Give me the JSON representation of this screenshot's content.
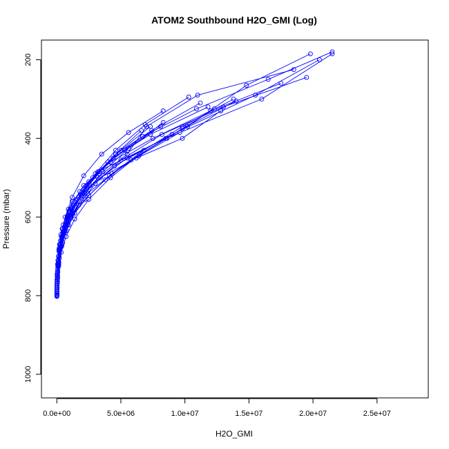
{
  "chart_data": {
    "type": "line",
    "title": "ATOM2 Southbound H2O_GMI (Log)",
    "xlabel": "H2O_GMI",
    "ylabel": "Pressure (mbar)",
    "xlim": [
      -1200000,
      29000000
    ],
    "ylim": [
      1060,
      150
    ],
    "y_reversed": true,
    "x_ticks": [
      0,
      5000000,
      10000000,
      15000000,
      20000000,
      25000000
    ],
    "x_tick_labels": [
      "0.0e+00",
      "5.0e+06",
      "1.0e+07",
      "1.5e+07",
      "2.0e+07",
      "2.5e+07"
    ],
    "y_ticks": [
      200,
      400,
      600,
      800,
      1000
    ],
    "y_tick_labels": [
      "200",
      "400",
      "600",
      "800",
      "1000"
    ],
    "marker": "open-circle",
    "grid": false,
    "legend": "none",
    "series": [
      {
        "x": [
          5000,
          30000,
          80000,
          200000,
          500000,
          1200000,
          3500000,
          8500000,
          16000000,
          21500000
        ],
        "y": [
          802,
          770,
          730,
          680,
          620,
          560,
          480,
          400,
          300,
          185
        ]
      },
      {
        "x": [
          8000,
          40000,
          120000,
          300000,
          800000,
          2000000,
          4500000,
          9000000,
          15500000,
          20500000
        ],
        "y": [
          800,
          760,
          710,
          660,
          600,
          540,
          470,
          390,
          290,
          200
        ]
      },
      {
        "x": [
          10000,
          60000,
          180000,
          450000,
          1100000,
          2600000,
          5500000,
          10200000,
          14800000,
          19800000
        ],
        "y": [
          798,
          750,
          700,
          640,
          580,
          520,
          450,
          370,
          265,
          185
        ]
      },
      {
        "x": [
          12000,
          50000,
          150000,
          400000,
          900000,
          1800000,
          3200000,
          5500000,
          7000000,
          11000000,
          18500000
        ],
        "y": [
          795,
          765,
          720,
          670,
          620,
          560,
          500,
          440,
          370,
          290,
          225
        ]
      },
      {
        "x": [
          6000,
          25000,
          70000,
          180000,
          420000,
          900000,
          2100000,
          4200000,
          7500000,
          12000000,
          17500000
        ],
        "y": [
          790,
          760,
          720,
          680,
          630,
          580,
          520,
          460,
          400,
          330,
          260
        ]
      },
      {
        "x": [
          9000,
          45000,
          140000,
          350000,
          850000,
          1700000,
          3400000,
          6200000,
          9800000,
          12800000
        ],
        "y": [
          785,
          745,
          700,
          650,
          600,
          550,
          500,
          450,
          400,
          330
        ]
      },
      {
        "x": [
          4000,
          20000,
          60000,
          140000,
          330000,
          700000,
          1300000,
          2500000,
          4400000,
          7300000,
          11800000
        ],
        "y": [
          800,
          770,
          740,
          700,
          660,
          620,
          570,
          510,
          450,
          390,
          320
        ]
      },
      {
        "x": [
          7000,
          35000,
          100000,
          260000,
          600000,
          1250000,
          2400000,
          4300000,
          6800000,
          9800000,
          13800000
        ],
        "y": [
          780,
          750,
          710,
          670,
          630,
          590,
          540,
          490,
          430,
          370,
          300
        ]
      },
      {
        "x": [
          15000,
          70000,
          200000,
          500000,
          1100000,
          2200000,
          3800000,
          5800000,
          8600000,
          12300000
        ],
        "y": [
          770,
          735,
          690,
          645,
          600,
          555,
          505,
          455,
          400,
          325
        ]
      },
      {
        "x": [
          5000,
          15000,
          40000,
          90000,
          200000,
          420000,
          850000,
          1600000,
          2800000,
          4600000,
          7400000,
          11200000
        ],
        "y": [
          800,
          780,
          755,
          725,
          690,
          650,
          605,
          555,
          500,
          440,
          380,
          310
        ]
      },
      {
        "x": [
          11000,
          55000,
          160000,
          380000,
          750000,
          1400000,
          2500000,
          4100000,
          6400000,
          9600000
        ],
        "y": [
          790,
          755,
          715,
          675,
          635,
          590,
          545,
          495,
          445,
          385
        ]
      },
      {
        "x": [
          3000,
          12000,
          30000,
          70000,
          150000,
          320000,
          650000,
          1200000,
          2100000,
          3500000,
          5600000,
          8300000
        ],
        "y": [
          795,
          775,
          750,
          720,
          685,
          645,
          600,
          550,
          495,
          440,
          385,
          330
        ]
      },
      {
        "x": [
          8000,
          30000,
          90000,
          210000,
          460000,
          950000,
          1800000,
          3200000,
          5300000,
          8100000
        ],
        "y": [
          775,
          745,
          710,
          670,
          630,
          585,
          535,
          485,
          430,
          370
        ]
      },
      {
        "x": [
          20000,
          80000,
          220000,
          520000,
          1050000,
          1900000,
          3100000,
          4600000,
          6600000
        ],
        "y": [
          760,
          725,
          685,
          640,
          595,
          545,
          495,
          440,
          380
        ]
      },
      {
        "x": [
          6000,
          22000,
          60000,
          150000,
          340000,
          720000,
          1400000,
          2500000,
          4200000,
          6500000,
          9800000,
          14000000
        ],
        "y": [
          800,
          780,
          755,
          725,
          690,
          650,
          605,
          555,
          500,
          440,
          375,
          305
        ]
      },
      {
        "x": [
          10000,
          40000,
          110000,
          270000,
          580000,
          1100000,
          1900000,
          3000000,
          4600000,
          6900000,
          10300000
        ],
        "y": [
          785,
          755,
          720,
          680,
          640,
          595,
          545,
          490,
          430,
          365,
          295
        ]
      },
      {
        "x": [
          4000,
          18000,
          50000,
          120000,
          280000,
          600000,
          1200000,
          2300000,
          4000000,
          6700000,
          10900000,
          16500000,
          21500000
        ],
        "y": [
          800,
          775,
          745,
          710,
          670,
          625,
          575,
          520,
          460,
          395,
          325,
          250,
          180
        ]
      },
      {
        "x": [
          7000,
          28000,
          80000,
          200000,
          450000,
          900000,
          1700000,
          3000000,
          5000000,
          8200000,
          13000000,
          19500000
        ],
        "y": [
          795,
          770,
          740,
          705,
          665,
          620,
          570,
          515,
          455,
          390,
          320,
          245
        ]
      },
      {
        "x": [
          12000,
          45000,
          130000,
          310000,
          650000,
          1250000,
          2200000,
          3600000,
          5600000,
          8300000
        ],
        "y": [
          780,
          750,
          715,
          675,
          635,
          590,
          540,
          485,
          425,
          360
        ]
      },
      {
        "x": [
          5000,
          20000,
          55000,
          130000,
          300000,
          620000,
          1150000,
          2000000,
          3300000,
          5000000,
          7300000
        ],
        "y": [
          790,
          765,
          740,
          710,
          675,
          635,
          590,
          540,
          485,
          430,
          370
        ]
      }
    ]
  }
}
